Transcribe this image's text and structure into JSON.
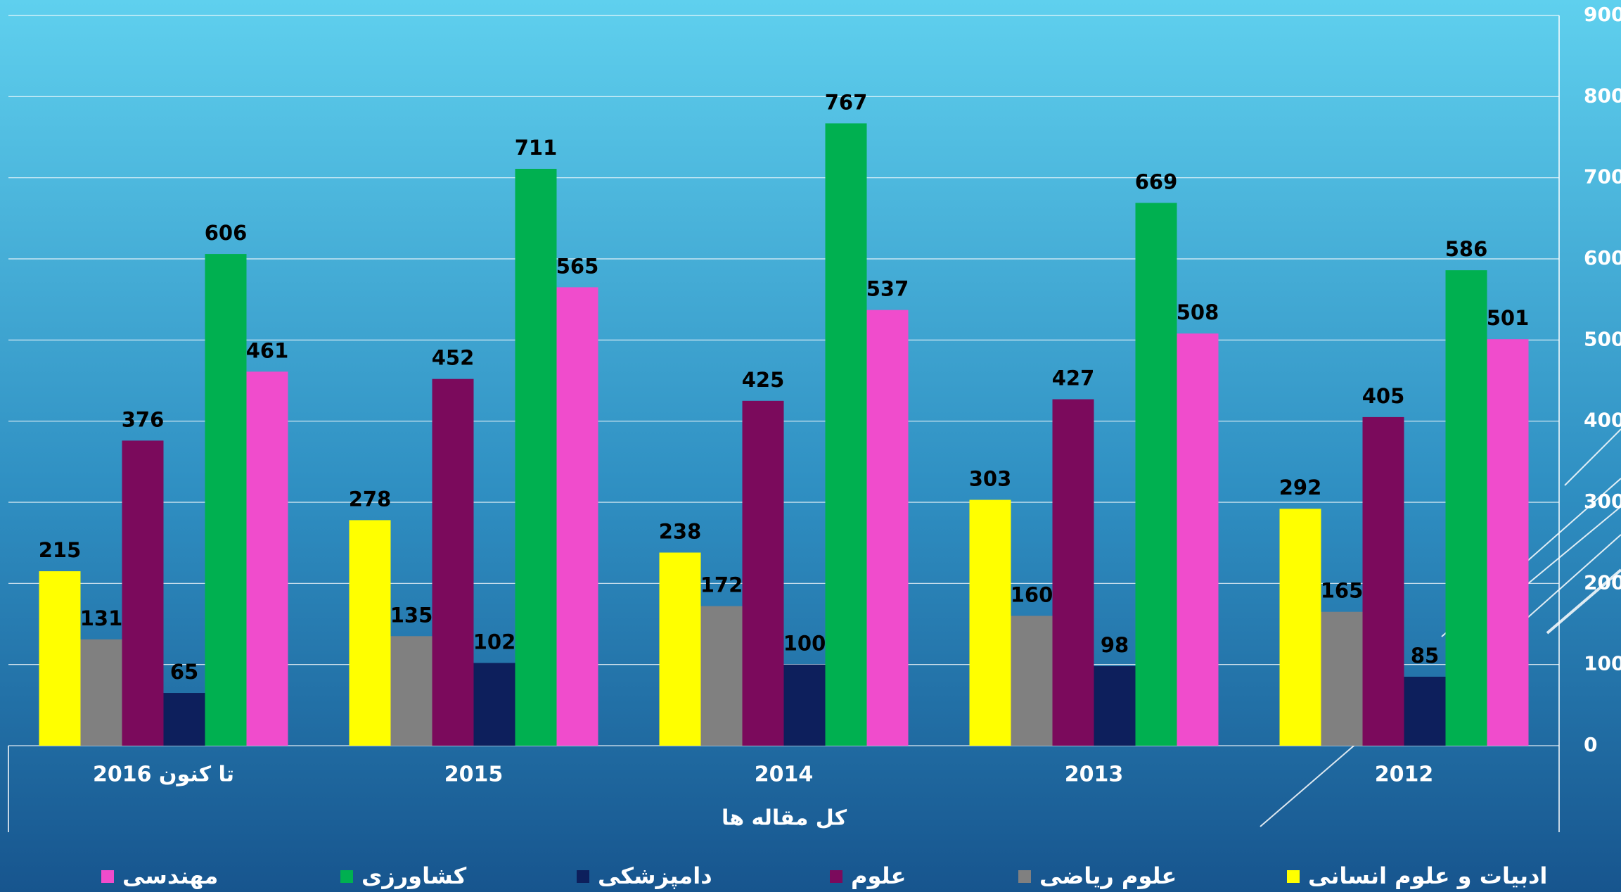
{
  "chart_data": {
    "type": "bar",
    "x_label": "کل  مقاله ها",
    "categories": [
      "تا کنون 2016",
      "2015",
      "2014",
      "2013",
      "2012"
    ],
    "series": [
      {
        "name": "ادبیات و علوم انسانی",
        "color": "#ffff00",
        "values": [
          215,
          278,
          238,
          303,
          292
        ]
      },
      {
        "name": "علوم ریاضی",
        "color": "#808080",
        "values": [
          131,
          135,
          172,
          160,
          165
        ]
      },
      {
        "name": "علوم",
        "color": "#7b0a5c",
        "values": [
          376,
          452,
          425,
          427,
          405
        ]
      },
      {
        "name": "دامپزشکی",
        "color": "#0d1f5c",
        "values": [
          65,
          102,
          100,
          98,
          85
        ]
      },
      {
        "name": "کشاورزی",
        "color": "#00b050",
        "values": [
          606,
          711,
          767,
          669,
          586
        ]
      },
      {
        "name": "مهندسی",
        "color": "#f04ccc",
        "values": [
          461,
          565,
          537,
          508,
          501
        ]
      }
    ],
    "ylim": [
      0,
      900
    ],
    "yticks": [
      0,
      100,
      200,
      300,
      400,
      500,
      600,
      700,
      800,
      900
    ],
    "grid": true,
    "legend": "bottom"
  }
}
